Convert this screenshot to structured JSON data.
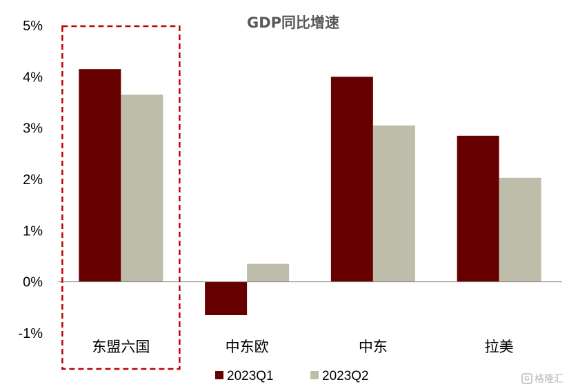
{
  "chart_data": {
    "type": "bar",
    "title": "GDP同比增速",
    "categories": [
      "东盟六国",
      "中东欧",
      "中东",
      "拉美"
    ],
    "series": [
      {
        "name": "2023Q1",
        "values": [
          4.15,
          -0.65,
          4.0,
          2.85
        ],
        "color": "#660000"
      },
      {
        "name": "2023Q2",
        "values": [
          3.65,
          0.35,
          3.05,
          2.03
        ],
        "color": "#BDBDAA"
      }
    ],
    "ylim": [
      -1,
      5
    ],
    "yticks": [
      "-1%",
      "0%",
      "1%",
      "2%",
      "3%",
      "4%",
      "5%"
    ],
    "legend_position": "bottom",
    "highlight": {
      "category": "东盟六国",
      "style": "dashed",
      "color": "#C00000"
    },
    "grid": false
  },
  "watermark": {
    "text": "格隆汇",
    "icon": "watermark-logo-icon"
  }
}
